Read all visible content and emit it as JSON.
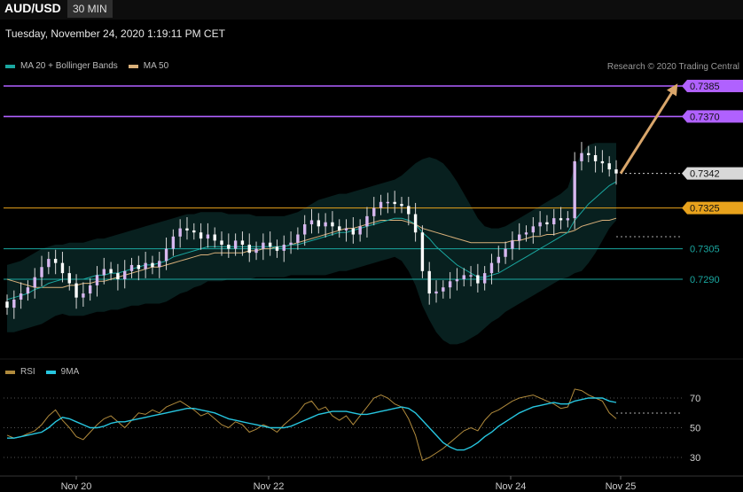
{
  "header": {
    "pair": "AUD/USD",
    "timeframe": "30 MIN"
  },
  "timestamp": "Tuesday, November 24, 2020 1:19:11 PM CET",
  "legend": {
    "main": [
      {
        "label": "MA 20 + Bollinger Bands",
        "color": "#1aa7a0"
      },
      {
        "label": "MA 50",
        "color": "#d9b07a"
      }
    ],
    "rsi": [
      {
        "label": "RSI",
        "color": "#b08a3c"
      },
      {
        "label": "9MA",
        "color": "#27c6e0"
      }
    ]
  },
  "credit": "Research © 2020 Trading Central",
  "chart_data": {
    "type": "line",
    "subtype": "candlestick",
    "x_ticks": [
      "Nov 20",
      "Nov 22",
      "Nov 24",
      "Nov 25"
    ],
    "levels": [
      {
        "label": "0.7385",
        "value": 0.7385,
        "color": "#b061ff",
        "style": "resistance"
      },
      {
        "label": "0.7370",
        "value": 0.737,
        "color": "#b061ff",
        "style": "resistance"
      },
      {
        "label": "0.7342",
        "value": 0.7342,
        "color": "#d8d8d8",
        "style": "last"
      },
      {
        "label": "0.7325",
        "value": 0.7325,
        "color": "#e8a21c",
        "style": "pivot"
      },
      {
        "label": "0.7305",
        "value": 0.7305,
        "color": "#1aa7a0",
        "style": "support"
      },
      {
        "label": "0.7290",
        "value": 0.729,
        "color": "#1aa7a0",
        "style": "support"
      }
    ],
    "arrow_target": 0.7385,
    "price_series": [
      0.7276,
      0.728,
      0.7283,
      0.7286,
      0.7291,
      0.7296,
      0.73,
      0.7298,
      0.7293,
      0.7288,
      0.7281,
      0.7283,
      0.7287,
      0.7292,
      0.7295,
      0.7293,
      0.729,
      0.7294,
      0.7297,
      0.7295,
      0.7298,
      0.7296,
      0.7299,
      0.7305,
      0.7311,
      0.7315,
      0.7314,
      0.7313,
      0.731,
      0.7312,
      0.7309,
      0.7307,
      0.7305,
      0.7309,
      0.7307,
      0.7303,
      0.7305,
      0.7308,
      0.7306,
      0.7304,
      0.7307,
      0.7308,
      0.7312,
      0.7317,
      0.7319,
      0.7316,
      0.7318,
      0.7316,
      0.7314,
      0.7315,
      0.7312,
      0.7316,
      0.7321,
      0.7325,
      0.7328,
      0.7328,
      0.7327,
      0.7326,
      0.7322,
      0.7313,
      0.7294,
      0.7283,
      0.7284,
      0.7286,
      0.7289,
      0.729,
      0.7292,
      0.7292,
      0.7288,
      0.7293,
      0.7298,
      0.7301,
      0.7305,
      0.7309,
      0.7312,
      0.7313,
      0.7316,
      0.7318,
      0.7317,
      0.732,
      0.7319,
      0.732,
      0.7348,
      0.7352,
      0.7351,
      0.7348,
      0.7347,
      0.7344,
      0.7342
    ],
    "ma20": [
      0.728,
      0.7281,
      0.7282,
      0.7283,
      0.7285,
      0.7286,
      0.7288,
      0.7289,
      0.729,
      0.729,
      0.729,
      0.729,
      0.7291,
      0.7292,
      0.7292,
      0.7293,
      0.7293,
      0.7294,
      0.7295,
      0.7296,
      0.7297,
      0.7297,
      0.7298,
      0.7299,
      0.7301,
      0.7302,
      0.7303,
      0.7304,
      0.7305,
      0.7306,
      0.7306,
      0.7306,
      0.7306,
      0.7306,
      0.7306,
      0.7306,
      0.7306,
      0.7306,
      0.7306,
      0.7306,
      0.7306,
      0.7307,
      0.7307,
      0.7308,
      0.7309,
      0.731,
      0.7311,
      0.7312,
      0.7313,
      0.7313,
      0.7314,
      0.7315,
      0.7316,
      0.7317,
      0.7318,
      0.7319,
      0.732,
      0.732,
      0.7319,
      0.7317,
      0.7313,
      0.731,
      0.7306,
      0.7303,
      0.73,
      0.7297,
      0.7295,
      0.7293,
      0.7291,
      0.7291,
      0.7292,
      0.7293,
      0.7295,
      0.7297,
      0.7299,
      0.7301,
      0.7303,
      0.7305,
      0.7307,
      0.7309,
      0.7311,
      0.7313,
      0.7319,
      0.7323,
      0.7327,
      0.733,
      0.7333,
      0.7336,
      0.7338
    ],
    "ma50": [
      0.729,
      0.7289,
      0.7288,
      0.7287,
      0.7286,
      0.7286,
      0.7286,
      0.7286,
      0.7286,
      0.7287,
      0.7287,
      0.7288,
      0.7288,
      0.7289,
      0.7289,
      0.729,
      0.7291,
      0.7292,
      0.7293,
      0.7294,
      0.7295,
      0.7296,
      0.7296,
      0.7297,
      0.7298,
      0.7299,
      0.73,
      0.7301,
      0.7302,
      0.7302,
      0.7303,
      0.7303,
      0.7303,
      0.7303,
      0.7303,
      0.7304,
      0.7304,
      0.7305,
      0.7305,
      0.7306,
      0.7306,
      0.7307,
      0.7308,
      0.7309,
      0.731,
      0.7311,
      0.7312,
      0.7313,
      0.7314,
      0.7315,
      0.7315,
      0.7316,
      0.7317,
      0.7318,
      0.7319,
      0.7319,
      0.7319,
      0.7319,
      0.7318,
      0.7317,
      0.7315,
      0.7314,
      0.7313,
      0.7312,
      0.7311,
      0.731,
      0.7309,
      0.7308,
      0.7308,
      0.7308,
      0.7308,
      0.7308,
      0.7308,
      0.7309,
      0.7309,
      0.731,
      0.7311,
      0.7311,
      0.7312,
      0.7312,
      0.7313,
      0.7313,
      0.7314,
      0.7316,
      0.7317,
      0.7318,
      0.7319,
      0.7319,
      0.732
    ],
    "band_upper": [
      0.7297,
      0.7298,
      0.7299,
      0.7301,
      0.7303,
      0.7305,
      0.7306,
      0.7307,
      0.7307,
      0.7308,
      0.7308,
      0.7308,
      0.7309,
      0.731,
      0.731,
      0.7311,
      0.7312,
      0.7313,
      0.7314,
      0.7315,
      0.7316,
      0.7317,
      0.7318,
      0.7319,
      0.732,
      0.7321,
      0.7322,
      0.7322,
      0.7323,
      0.7323,
      0.7323,
      0.7323,
      0.7322,
      0.7322,
      0.7322,
      0.7322,
      0.7321,
      0.7321,
      0.7321,
      0.7321,
      0.7321,
      0.7322,
      0.7323,
      0.7325,
      0.7327,
      0.7329,
      0.733,
      0.7331,
      0.7332,
      0.7332,
      0.7333,
      0.7334,
      0.7335,
      0.7336,
      0.7337,
      0.7338,
      0.7339,
      0.7341,
      0.7344,
      0.7347,
      0.7349,
      0.735,
      0.7349,
      0.7347,
      0.7343,
      0.7338,
      0.7332,
      0.7326,
      0.732,
      0.7316,
      0.7315,
      0.7315,
      0.7316,
      0.7318,
      0.732,
      0.7322,
      0.7324,
      0.7326,
      0.7328,
      0.733,
      0.7332,
      0.7335,
      0.7345,
      0.7352,
      0.7356,
      0.7357,
      0.7357,
      0.7357,
      0.7357
    ],
    "band_lower": [
      0.7264,
      0.7264,
      0.7265,
      0.7266,
      0.7267,
      0.7268,
      0.727,
      0.7272,
      0.7273,
      0.7272,
      0.7272,
      0.7272,
      0.7273,
      0.7274,
      0.7274,
      0.7275,
      0.7275,
      0.7276,
      0.7277,
      0.7277,
      0.7278,
      0.7278,
      0.7278,
      0.7279,
      0.7281,
      0.7283,
      0.7284,
      0.7286,
      0.7287,
      0.7289,
      0.7289,
      0.7289,
      0.729,
      0.729,
      0.729,
      0.729,
      0.7291,
      0.7291,
      0.7291,
      0.7291,
      0.7291,
      0.7292,
      0.7292,
      0.7292,
      0.7292,
      0.7292,
      0.7292,
      0.7293,
      0.7294,
      0.7294,
      0.7295,
      0.7296,
      0.7297,
      0.7298,
      0.7299,
      0.73,
      0.7301,
      0.7299,
      0.7294,
      0.7287,
      0.7277,
      0.727,
      0.7264,
      0.726,
      0.7258,
      0.7258,
      0.7259,
      0.7261,
      0.7263,
      0.7266,
      0.7269,
      0.7271,
      0.7274,
      0.7276,
      0.7278,
      0.728,
      0.7282,
      0.7284,
      0.7286,
      0.7288,
      0.729,
      0.7291,
      0.7293,
      0.7294,
      0.7298,
      0.7303,
      0.7309,
      0.7315,
      0.7319
    ],
    "rsi": {
      "ticks": [
        70,
        50,
        30
      ],
      "values": [
        45,
        43,
        44,
        46,
        48,
        52,
        58,
        62,
        55,
        50,
        44,
        42,
        47,
        52,
        56,
        58,
        54,
        50,
        55,
        60,
        59,
        62,
        60,
        64,
        66,
        68,
        65,
        62,
        58,
        60,
        56,
        52,
        50,
        54,
        52,
        47,
        49,
        52,
        50,
        47,
        52,
        56,
        60,
        66,
        68,
        62,
        64,
        58,
        55,
        58,
        52,
        58,
        64,
        70,
        72,
        70,
        66,
        64,
        56,
        45,
        28,
        30,
        33,
        36,
        40,
        44,
        48,
        50,
        48,
        55,
        60,
        62,
        65,
        68,
        70,
        71,
        72,
        70,
        68,
        66,
        63,
        64,
        76,
        75,
        72,
        70,
        68,
        60,
        56
      ],
      "ma9": [
        43,
        43,
        44,
        45,
        46,
        47,
        50,
        54,
        57,
        56,
        54,
        52,
        50,
        50,
        51,
        53,
        54,
        54,
        55,
        56,
        57,
        58,
        59,
        60,
        61,
        62,
        63,
        63,
        62,
        61,
        60,
        58,
        56,
        55,
        54,
        53,
        52,
        51,
        50,
        50,
        50,
        51,
        53,
        55,
        57,
        59,
        60,
        61,
        61,
        61,
        60,
        59,
        59,
        60,
        61,
        62,
        63,
        64,
        63,
        60,
        55,
        50,
        45,
        40,
        37,
        35,
        35,
        37,
        40,
        44,
        47,
        51,
        54,
        57,
        60,
        62,
        64,
        65,
        66,
        67,
        66,
        66,
        68,
        69,
        70,
        70,
        70,
        68,
        67
      ]
    }
  }
}
